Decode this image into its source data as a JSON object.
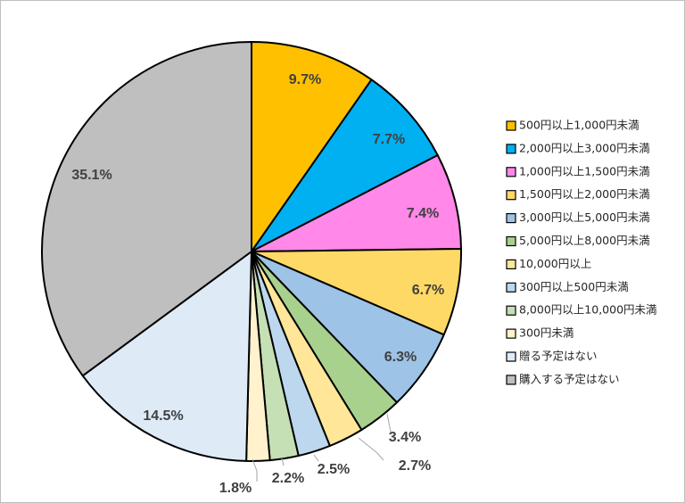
{
  "chart_data": {
    "type": "pie",
    "title": "",
    "slices": [
      {
        "label": "500円以上1,000円未満",
        "value": 9.7,
        "text": "9.7%",
        "color": "#FFC000"
      },
      {
        "label": "2,000円以上3,000円未満",
        "value": 7.7,
        "text": "7.7%",
        "color": "#00B0F0"
      },
      {
        "label": "1,000円以上1,500円未満",
        "value": 7.4,
        "text": "7.4%",
        "color": "#FF88E8"
      },
      {
        "label": "1,500円以上2,000円未満",
        "value": 6.7,
        "text": "6.7%",
        "color": "#FFD966"
      },
      {
        "label": "3,000円以上5,000円未満",
        "value": 6.3,
        "text": "6.3%",
        "color": "#9DC3E6"
      },
      {
        "label": "5,000円以上8,000円未満",
        "value": 3.4,
        "text": "3.4%",
        "color": "#A9D18E"
      },
      {
        "label": "10,000円以上",
        "value": 2.7,
        "text": "2.7%",
        "color": "#FFE699"
      },
      {
        "label": "300円以上500円未満",
        "value": 2.5,
        "text": "2.5%",
        "color": "#BDD7EE"
      },
      {
        "label": "8,000円以上10,000円未満",
        "value": 2.2,
        "text": "2.2%",
        "color": "#C5E0B4"
      },
      {
        "label": "300円未満",
        "value": 1.8,
        "text": "1.8%",
        "color": "#FFF2CC"
      },
      {
        "label": "贈る予定はない",
        "value": 14.5,
        "text": "14.5%",
        "color": "#DEEBF7"
      },
      {
        "label": "購入する予定はない",
        "value": 35.1,
        "text": "35.1%",
        "color": "#BFBFBF"
      }
    ],
    "start_angle": "12 o'clock",
    "direction": "clockwise",
    "legend_position": "right"
  }
}
